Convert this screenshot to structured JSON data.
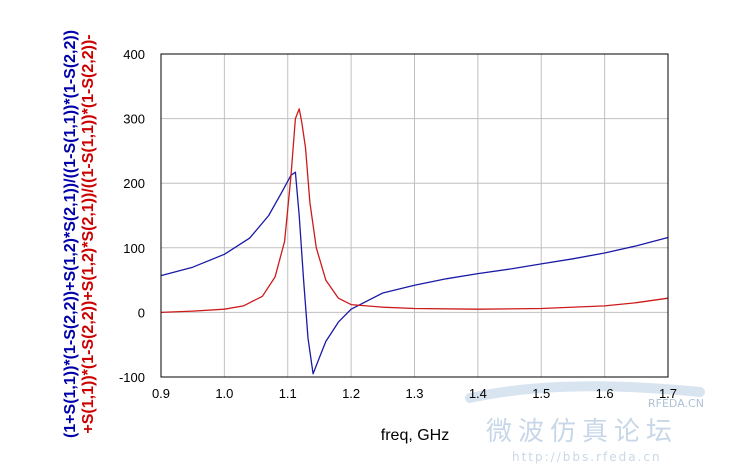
{
  "chart_data": {
    "type": "line",
    "xlabel": "freq, GHz",
    "ylabels": [
      {
        "text": "(1+S(1,1))*(1-S(2,2))+S(1,2)*S(2,1))/((1-S(1,1))*(1-S(2,2))",
        "color": "#0000aa"
      },
      {
        "text": "+S(1,1))*(1-S(2,2))+S(1,2)*S(2,1))/((1-S(1,1))*(1-S(2,2))-",
        "color": "#cc0000"
      }
    ],
    "xlim": [
      0.9,
      1.7
    ],
    "ylim": [
      -100,
      400
    ],
    "x_ticks": [
      "0.9",
      "1.0",
      "1.1",
      "1.2",
      "1.3",
      "1.4",
      "1.5",
      "1.6",
      "1.7"
    ],
    "y_ticks": [
      "-100",
      "0",
      "100",
      "200",
      "300",
      "400"
    ],
    "grid": true,
    "series": [
      {
        "color": "#1a1aa6",
        "points": [
          [
            0.9,
            57
          ],
          [
            0.95,
            70
          ],
          [
            1.0,
            90
          ],
          [
            1.04,
            115
          ],
          [
            1.07,
            150
          ],
          [
            1.09,
            185
          ],
          [
            1.105,
            212
          ],
          [
            1.112,
            217
          ],
          [
            1.118,
            150
          ],
          [
            1.125,
            50
          ],
          [
            1.132,
            -40
          ],
          [
            1.14,
            -95
          ],
          [
            1.15,
            -70
          ],
          [
            1.16,
            -45
          ],
          [
            1.18,
            -15
          ],
          [
            1.2,
            5
          ],
          [
            1.25,
            30
          ],
          [
            1.3,
            42
          ],
          [
            1.35,
            52
          ],
          [
            1.4,
            60
          ],
          [
            1.45,
            67
          ],
          [
            1.5,
            75
          ],
          [
            1.55,
            83
          ],
          [
            1.6,
            92
          ],
          [
            1.65,
            103
          ],
          [
            1.7,
            116
          ]
        ]
      },
      {
        "color": "#cc1b1b",
        "points": [
          [
            0.9,
            0
          ],
          [
            0.95,
            2
          ],
          [
            1.0,
            5
          ],
          [
            1.03,
            10
          ],
          [
            1.06,
            25
          ],
          [
            1.08,
            55
          ],
          [
            1.095,
            110
          ],
          [
            1.105,
            210
          ],
          [
            1.112,
            300
          ],
          [
            1.118,
            315
          ],
          [
            1.122,
            295
          ],
          [
            1.128,
            255
          ],
          [
            1.135,
            170
          ],
          [
            1.145,
            100
          ],
          [
            1.16,
            50
          ],
          [
            1.18,
            22
          ],
          [
            1.2,
            12
          ],
          [
            1.25,
            8
          ],
          [
            1.3,
            6
          ],
          [
            1.4,
            5
          ],
          [
            1.5,
            6
          ],
          [
            1.6,
            10
          ],
          [
            1.65,
            15
          ],
          [
            1.7,
            22
          ]
        ]
      }
    ]
  },
  "watermark": {
    "logo": "RFEDA.CN",
    "title": "微波仿真论坛",
    "url": "http://bbs.rfeda.cn"
  }
}
